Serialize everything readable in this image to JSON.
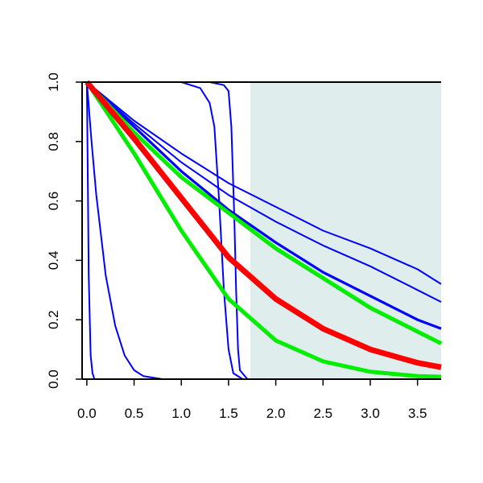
{
  "chart_data": {
    "type": "line",
    "title": "",
    "xlabel": "",
    "ylabel": "",
    "xlim": [
      -0.05,
      3.75
    ],
    "ylim": [
      0.0,
      1.0
    ],
    "x_ticks": [
      0.0,
      0.5,
      1.0,
      1.5,
      2.0,
      2.5,
      3.0,
      3.5
    ],
    "x_tick_labels": [
      "0.0",
      "0.5",
      "1.0",
      "1.5",
      "2.0",
      "2.5",
      "3.0",
      "3.5"
    ],
    "y_ticks": [
      0.0,
      0.2,
      0.4,
      0.6,
      0.8,
      1.0
    ],
    "y_tick_labels": [
      "0.0",
      "0.2",
      "0.4",
      "0.6",
      "0.8",
      "1.0"
    ],
    "grid": false,
    "shaded_region": {
      "x_from": 1.73,
      "x_to": 3.75,
      "color": "#e0eded"
    },
    "series": [
      {
        "color": "#0000ff",
        "width": "thin",
        "x": [
          0,
          0.5,
          1.0,
          1.5,
          2.0,
          2.5,
          3.0,
          3.5,
          3.75
        ],
        "y": [
          1.0,
          0.87,
          0.76,
          0.66,
          0.58,
          0.5,
          0.44,
          0.37,
          0.32
        ]
      },
      {
        "color": "#0000ff",
        "width": "thin",
        "x": [
          0,
          0.5,
          1.0,
          1.5,
          2.0,
          2.5,
          3.0,
          3.5,
          3.75
        ],
        "y": [
          1.0,
          0.86,
          0.73,
          0.62,
          0.53,
          0.45,
          0.38,
          0.3,
          0.26
        ]
      },
      {
        "color": "#0000ff",
        "width": "medium",
        "x": [
          0,
          0.5,
          1.0,
          1.5,
          2.0,
          2.5,
          3.0,
          3.5,
          3.75
        ],
        "y": [
          1.0,
          0.85,
          0.7,
          0.57,
          0.46,
          0.36,
          0.28,
          0.2,
          0.17
        ]
      },
      {
        "color": "#0000ff",
        "width": "thin",
        "x": [
          0,
          0.05,
          0.1,
          0.2,
          0.3,
          0.4,
          0.5,
          0.6,
          0.8,
          1.0
        ],
        "y": [
          1.0,
          0.8,
          0.62,
          0.35,
          0.18,
          0.08,
          0.03,
          0.01,
          0.0,
          0.0
        ]
      },
      {
        "color": "#0000ff",
        "width": "thin",
        "x": [
          0,
          0.01,
          0.02,
          0.04,
          0.06,
          0.08,
          0.1
        ],
        "y": [
          1.0,
          0.7,
          0.35,
          0.08,
          0.02,
          0.0,
          0.0
        ]
      },
      {
        "color": "#0000ff",
        "width": "thin",
        "x": [
          0,
          1.0,
          1.2,
          1.3,
          1.35,
          1.4,
          1.45,
          1.5,
          1.55,
          1.65
        ],
        "y": [
          1.0,
          1.0,
          0.98,
          0.93,
          0.85,
          0.6,
          0.3,
          0.1,
          0.02,
          0.0
        ]
      },
      {
        "color": "#0000ff",
        "width": "thin",
        "x": [
          0,
          1.3,
          1.45,
          1.5,
          1.53,
          1.56,
          1.58,
          1.6,
          1.62,
          1.7
        ],
        "y": [
          1.0,
          1.0,
          0.99,
          0.97,
          0.85,
          0.55,
          0.3,
          0.1,
          0.03,
          0.0
        ]
      },
      {
        "color": "#00ee00",
        "width": "thick",
        "x": [
          0,
          0.5,
          1.0,
          1.5,
          2.0,
          2.5,
          3.0,
          3.5,
          3.75
        ],
        "y": [
          1.0,
          0.83,
          0.68,
          0.56,
          0.44,
          0.34,
          0.24,
          0.16,
          0.12
        ]
      },
      {
        "color": "#00ee00",
        "width": "thick",
        "x": [
          0,
          0.5,
          1.0,
          1.5,
          2.0,
          2.5,
          3.0,
          3.5,
          3.75
        ],
        "y": [
          1.0,
          0.76,
          0.5,
          0.27,
          0.13,
          0.06,
          0.025,
          0.01,
          0.008
        ]
      },
      {
        "color": "#ff0000",
        "width": "heavy",
        "x": [
          0,
          0.5,
          1.0,
          1.5,
          2.0,
          2.5,
          3.0,
          3.5,
          3.75
        ],
        "y": [
          1.0,
          0.81,
          0.61,
          0.41,
          0.27,
          0.17,
          0.1,
          0.055,
          0.04
        ]
      }
    ]
  }
}
